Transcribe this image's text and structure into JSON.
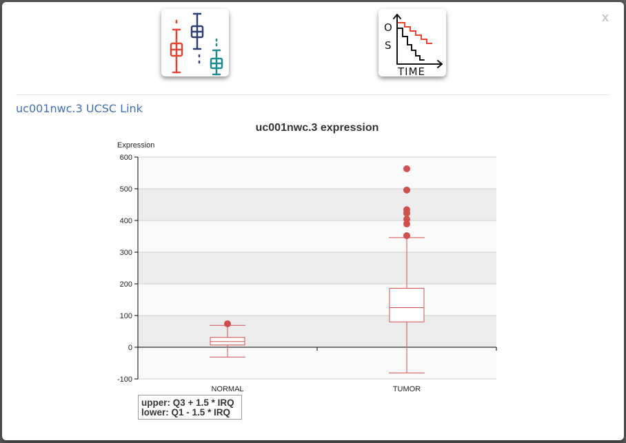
{
  "modal": {
    "close_label": "x",
    "link_text": "uc001nwc.3 UCSC Link"
  },
  "toolbar": {
    "boxplot_icon": "boxplot-icon",
    "survival_icon": "survival-plot-icon",
    "survival_icon_text_os": "OS",
    "survival_icon_text_time": "TIME"
  },
  "colors": {
    "box": "#d0504f",
    "band": "#ececec",
    "link": "#3f6fb5"
  },
  "chart_data": {
    "type": "boxplot",
    "title": "uc001nwc.3 expression",
    "ylabel": "Expression",
    "xlabel": "",
    "ylim": [
      -100,
      600
    ],
    "yticks": [
      -100,
      0,
      100,
      200,
      300,
      400,
      500,
      600
    ],
    "grid": true,
    "categories": [
      "NORMAL",
      "TUMOR"
    ],
    "boxes": [
      {
        "name": "NORMAL",
        "whisker_low": -31,
        "q1": 7,
        "median": 18,
        "q3": 31,
        "whisker_high": 69,
        "outliers": [
          74
        ]
      },
      {
        "name": "TUMOR",
        "whisker_low": -81,
        "q1": 80,
        "median": 125,
        "q3": 186,
        "whisker_high": 346,
        "outliers": [
          352,
          389,
          404,
          423,
          434,
          496,
          563
        ]
      }
    ],
    "legend_lines": [
      "upper: Q3 + 1.5 * IRQ",
      "lower: Q1 - 1.5 * IRQ"
    ]
  }
}
